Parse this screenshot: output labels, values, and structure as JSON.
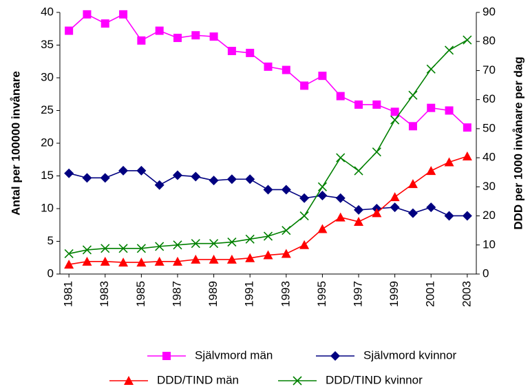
{
  "chart_data": {
    "type": "line",
    "ylabel": "Antal per 100000 invånare",
    "y2label": "DDD per 1000 invånare per dag",
    "x": [
      1981,
      1982,
      1983,
      1984,
      1985,
      1986,
      1987,
      1988,
      1989,
      1990,
      1991,
      1992,
      1993,
      1994,
      1995,
      1996,
      1997,
      1998,
      1999,
      2000,
      2001,
      2002,
      2003
    ],
    "xlim": [
      1980.5,
      2003.5
    ],
    "xticks": [
      1981,
      1983,
      1985,
      1987,
      1989,
      1991,
      1993,
      1995,
      1997,
      1999,
      2001,
      2003
    ],
    "ylim": [
      0,
      40
    ],
    "yticks": [
      0,
      5,
      10,
      15,
      20,
      25,
      30,
      35,
      40
    ],
    "y2lim": [
      0,
      90
    ],
    "y2ticks": [
      0,
      10,
      20,
      30,
      40,
      50,
      60,
      70,
      80,
      90
    ],
    "grid": false,
    "legend": "bottom",
    "series": [
      {
        "name": "Självmord män",
        "color": "#ff00ff",
        "marker": "square",
        "values": [
          37.2,
          39.7,
          38.3,
          39.7,
          35.7,
          37.2,
          36.1,
          36.5,
          36.3,
          34.1,
          33.8,
          31.7,
          31.2,
          28.8,
          30.3,
          27.2,
          25.9,
          25.9,
          24.8,
          22.6,
          25.4,
          25.0,
          22.4
        ]
      },
      {
        "name": "Självmord kvinnor",
        "color": "#000080",
        "marker": "diamond",
        "values": [
          15.4,
          14.7,
          14.7,
          15.8,
          15.8,
          13.6,
          15.1,
          14.9,
          14.3,
          14.5,
          14.5,
          12.9,
          12.9,
          11.6,
          12.0,
          11.6,
          9.8,
          10.0,
          10.2,
          9.3,
          10.2,
          8.9,
          8.9
        ]
      },
      {
        "name": "DDD/TIND män",
        "color": "#ff0000",
        "marker": "triangle",
        "axis": "y2",
        "values": [
          3.3,
          4.3,
          4.3,
          4.0,
          4.0,
          4.3,
          4.3,
          5.0,
          5.0,
          5.0,
          5.5,
          6.5,
          7.0,
          10.0,
          15.5,
          19.5,
          18.0,
          21.0,
          26.5,
          31.0,
          35.5,
          38.5,
          40.5
        ]
      },
      {
        "name": "DDD/TIND kvinnor",
        "color": "#008000",
        "marker": "x",
        "axis": "y2",
        "values": [
          7.0,
          8.3,
          8.8,
          8.8,
          8.8,
          9.5,
          10.0,
          10.5,
          10.5,
          11.0,
          12.0,
          13.0,
          15.0,
          20.0,
          30.0,
          40.0,
          35.5,
          42.0,
          53.0,
          61.5,
          70.5,
          77.0,
          80.5
        ]
      }
    ]
  }
}
